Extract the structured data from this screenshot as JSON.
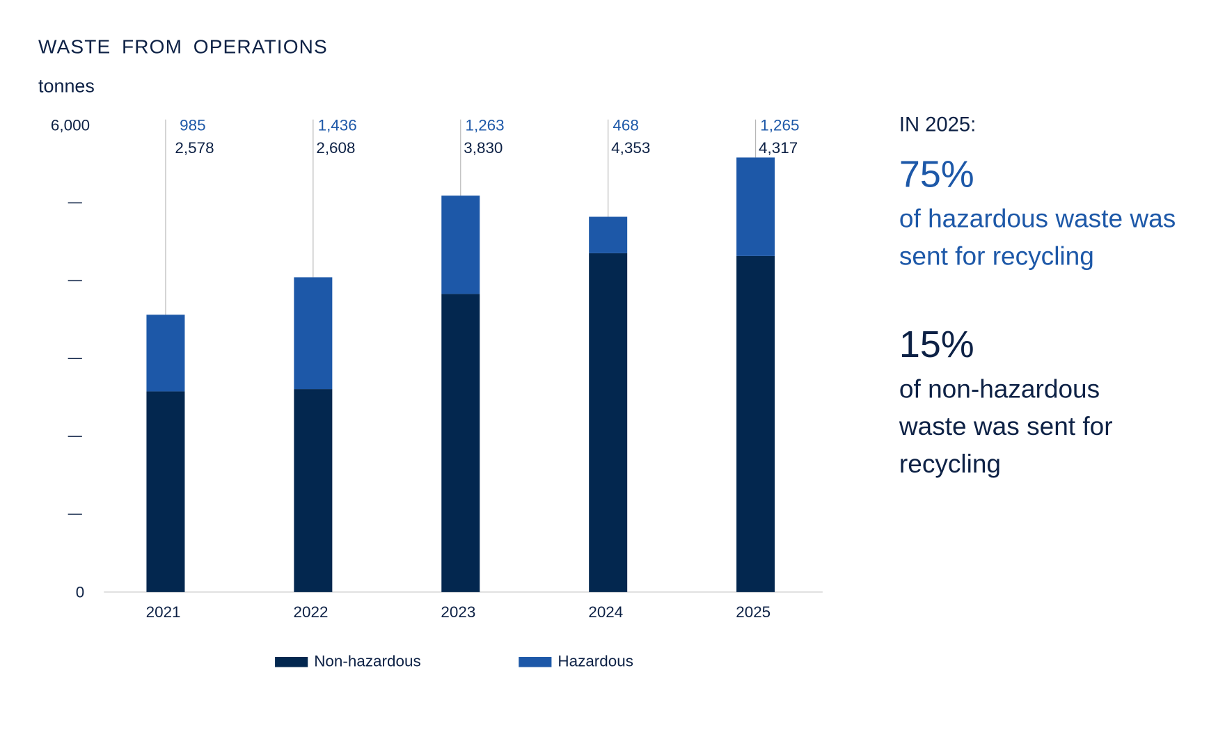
{
  "chart_data": {
    "type": "bar",
    "stacked": true,
    "title": "WASTE FROM OPERATIONS",
    "ylabel": "tonnes",
    "xlabel": "",
    "ylim": [
      0,
      6000
    ],
    "y_tick_labels": [
      "0",
      "6,000"
    ],
    "y_ticks": [
      0,
      1000,
      2000,
      3000,
      4000,
      5000,
      6000
    ],
    "categories": [
      "2021",
      "2022",
      "2023",
      "2024",
      "2025"
    ],
    "series": [
      {
        "name": "Non-hazardous",
        "color": "#03274f",
        "values": [
          2578,
          2608,
          3830,
          4353,
          4317
        ],
        "labels": [
          "2,578",
          "2,608",
          "3,830",
          "4,353",
          "4,317"
        ]
      },
      {
        "name": "Hazardous",
        "color": "#1d58a8",
        "values": [
          985,
          1436,
          1263,
          468,
          1265
        ],
        "labels": [
          "985",
          "1,436",
          "1,263",
          "468",
          "1,265"
        ]
      }
    ],
    "legend": "bottom"
  },
  "side": {
    "heading": "IN 2025:",
    "stat1": "75%",
    "desc1": "of hazardous waste was sent for recycling",
    "stat2": "15%",
    "desc2": "of non-hazardous waste was sent for recycling"
  }
}
